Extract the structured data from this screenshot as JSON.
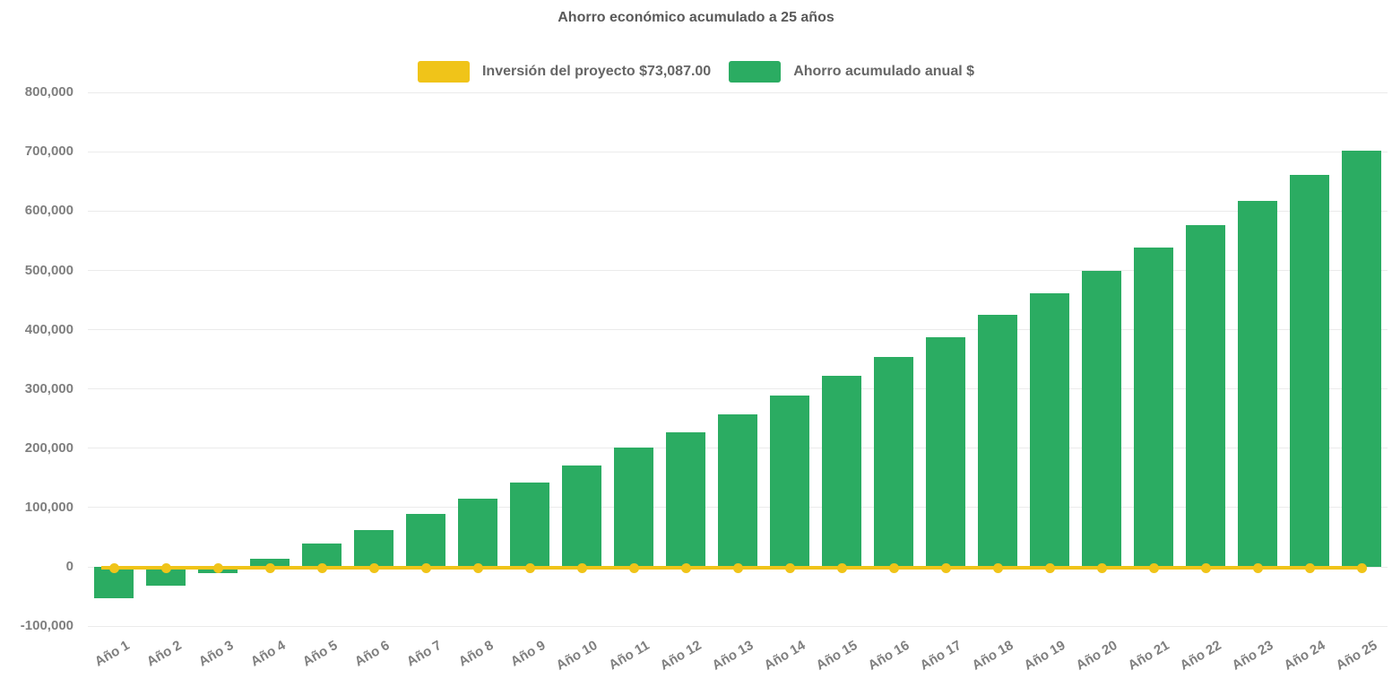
{
  "title": "Ahorro económico acumulado a 25 años",
  "legend": {
    "items": [
      {
        "label": "Inversión del proyecto $73,087.00",
        "color": "#F0C419",
        "series_type": "line"
      },
      {
        "label": "Ahorro acumulado anual $",
        "color": "#2BAC62",
        "series_type": "bar"
      }
    ]
  },
  "y_axis": {
    "tick_labels": [
      "800,000",
      "700,000",
      "600,000",
      "500,000",
      "400,000",
      "300,000",
      "200,000",
      "100,000",
      "0",
      "-100,000"
    ],
    "tick_values": [
      800000,
      700000,
      600000,
      500000,
      400000,
      300000,
      200000,
      100000,
      0,
      -100000
    ]
  },
  "chart_data": {
    "type": "bar",
    "title": "Ahorro económico acumulado a 25 años",
    "categories": [
      "Año 1",
      "Año 2",
      "Año 3",
      "Año 4",
      "Año 5",
      "Año 6",
      "Año 7",
      "Año 8",
      "Año 9",
      "Año 10",
      "Año 11",
      "Año 12",
      "Año 13",
      "Año 14",
      "Año 15",
      "Año 16",
      "Año 17",
      "Año 18",
      "Año 19",
      "Año 20",
      "Año 21",
      "Año 22",
      "Año 23",
      "Año 24",
      "Año 25"
    ],
    "series": [
      {
        "name": "Ahorro acumulado anual $",
        "type": "bar",
        "color": "#2BAC62",
        "values": [
          -54000,
          -33000,
          -11000,
          13000,
          38000,
          61000,
          88000,
          114000,
          141000,
          170000,
          200000,
          227000,
          257000,
          289000,
          321000,
          354000,
          387000,
          425000,
          461000,
          498000,
          538000,
          576000,
          617000,
          660000,
          702000
        ]
      },
      {
        "name": "Inversión del proyecto $73,087.00",
        "type": "line",
        "color": "#F0C419",
        "values": [
          0,
          0,
          0,
          0,
          0,
          0,
          0,
          0,
          0,
          0,
          0,
          0,
          0,
          0,
          0,
          0,
          0,
          0,
          0,
          0,
          0,
          0,
          0,
          0,
          0
        ]
      }
    ],
    "xlabel": "",
    "ylabel": "",
    "ylim": [
      -100000,
      800000
    ],
    "ytick_step": 100000,
    "grid": true,
    "legend_position": "top"
  },
  "colors": {
    "bar": "#2BAC62",
    "line": "#F0C419",
    "title_text": "#595959",
    "legend_text": "#666666",
    "axis_text": "#7F7F7F",
    "gridline": "rgba(0,0,0,0.08)",
    "background": "#FFFFFF"
  }
}
